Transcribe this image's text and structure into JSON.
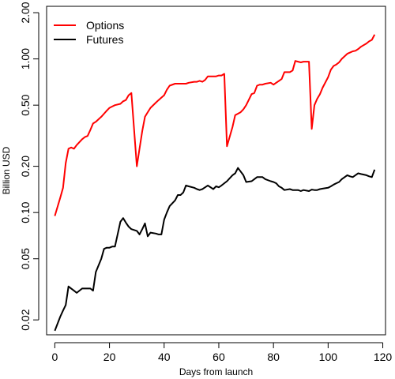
{
  "chart_data": {
    "type": "line",
    "title": "",
    "xlabel": "Days from launch",
    "ylabel": "Billion USD",
    "y_scale": "log",
    "xlim": [
      -3,
      121
    ],
    "ylim": [
      0.016,
      2.2
    ],
    "x_ticks": [
      0,
      20,
      40,
      60,
      80,
      100,
      120
    ],
    "y_ticks": [
      {
        "value": 0.02,
        "label": "0.02"
      },
      {
        "value": 0.05,
        "label": "0.05"
      },
      {
        "value": 0.1,
        "label": "0.10"
      },
      {
        "value": 0.2,
        "label": "0.20"
      },
      {
        "value": 0.5,
        "label": "0.50"
      },
      {
        "value": 1.0,
        "label": "1.00"
      },
      {
        "value": 2.0,
        "label": "2.00"
      }
    ],
    "grid": false,
    "legend_position": "top-left",
    "series": [
      {
        "name": "Options",
        "color": "#ff0000",
        "x": [
          0,
          2,
          3,
          4,
          5,
          6,
          7,
          8,
          10,
          11,
          12,
          13,
          14,
          15,
          17,
          18,
          19,
          20,
          21,
          22,
          24,
          25,
          26,
          27,
          28,
          30,
          31,
          32,
          33,
          34,
          35,
          37,
          38,
          39,
          40,
          41,
          42,
          44,
          45,
          46,
          47,
          48,
          49,
          51,
          52,
          53,
          54,
          55,
          56,
          58,
          59,
          60,
          61,
          62,
          63,
          65,
          66,
          67,
          68,
          69,
          70,
          72,
          73,
          74,
          75,
          76,
          77,
          79,
          80,
          81,
          82,
          83,
          84,
          86,
          87,
          88,
          89,
          90,
          91,
          93,
          94,
          95,
          96,
          97,
          98,
          100,
          101,
          102,
          103,
          104,
          105,
          107,
          108,
          109,
          110,
          111,
          112,
          114,
          115,
          116,
          117
        ],
        "y": [
          0.095,
          0.125,
          0.145,
          0.21,
          0.26,
          0.265,
          0.26,
          0.275,
          0.3,
          0.31,
          0.315,
          0.345,
          0.38,
          0.39,
          0.42,
          0.44,
          0.46,
          0.48,
          0.49,
          0.5,
          0.51,
          0.53,
          0.54,
          0.58,
          0.6,
          0.2,
          0.26,
          0.34,
          0.42,
          0.45,
          0.48,
          0.52,
          0.54,
          0.56,
          0.58,
          0.63,
          0.67,
          0.69,
          0.69,
          0.69,
          0.69,
          0.69,
          0.7,
          0.71,
          0.71,
          0.72,
          0.71,
          0.73,
          0.77,
          0.77,
          0.77,
          0.78,
          0.78,
          0.8,
          0.27,
          0.36,
          0.43,
          0.44,
          0.45,
          0.47,
          0.5,
          0.59,
          0.6,
          0.67,
          0.68,
          0.68,
          0.69,
          0.7,
          0.68,
          0.7,
          0.72,
          0.74,
          0.82,
          0.82,
          0.84,
          0.97,
          0.96,
          0.95,
          0.96,
          0.96,
          0.35,
          0.5,
          0.55,
          0.59,
          0.65,
          0.76,
          0.85,
          0.9,
          0.92,
          0.95,
          1.0,
          1.08,
          1.1,
          1.12,
          1.13,
          1.16,
          1.2,
          1.26,
          1.3,
          1.33,
          1.44
        ],
        "note": ""
      },
      {
        "name": "Futures",
        "color": "#000000",
        "x": [
          0,
          2,
          3,
          4,
          5,
          6,
          7,
          8,
          10,
          11,
          12,
          13,
          14,
          15,
          17,
          18,
          19,
          20,
          21,
          22,
          24,
          25,
          26,
          27,
          28,
          30,
          31,
          32,
          33,
          34,
          35,
          37,
          38,
          39,
          40,
          41,
          42,
          44,
          45,
          46,
          47,
          48,
          49,
          51,
          52,
          53,
          54,
          55,
          56,
          58,
          59,
          60,
          61,
          62,
          63,
          65,
          66,
          67,
          68,
          69,
          70,
          72,
          73,
          74,
          75,
          76,
          77,
          79,
          80,
          81,
          82,
          83,
          84,
          86,
          87,
          88,
          89,
          90,
          91,
          93,
          94,
          95,
          96,
          97,
          98,
          100,
          101,
          102,
          103,
          104,
          105,
          107,
          108,
          109,
          110,
          111,
          112,
          114,
          115,
          116,
          117
        ],
        "y": [
          0.017,
          0.021,
          0.023,
          0.025,
          0.033,
          0.032,
          0.031,
          0.03,
          0.032,
          0.032,
          0.032,
          0.032,
          0.031,
          0.041,
          0.05,
          0.058,
          0.059,
          0.059,
          0.06,
          0.06,
          0.087,
          0.092,
          0.086,
          0.081,
          0.078,
          0.076,
          0.072,
          0.078,
          0.085,
          0.07,
          0.074,
          0.073,
          0.072,
          0.072,
          0.09,
          0.1,
          0.11,
          0.12,
          0.13,
          0.13,
          0.135,
          0.15,
          0.148,
          0.145,
          0.142,
          0.14,
          0.142,
          0.146,
          0.15,
          0.142,
          0.148,
          0.146,
          0.15,
          0.155,
          0.16,
          0.175,
          0.18,
          0.195,
          0.185,
          0.175,
          0.158,
          0.16,
          0.165,
          0.17,
          0.17,
          0.17,
          0.165,
          0.16,
          0.158,
          0.155,
          0.148,
          0.145,
          0.14,
          0.142,
          0.14,
          0.14,
          0.14,
          0.138,
          0.14,
          0.138,
          0.141,
          0.14,
          0.14,
          0.142,
          0.143,
          0.145,
          0.148,
          0.152,
          0.155,
          0.158,
          0.165,
          0.175,
          0.172,
          0.17,
          0.175,
          0.18,
          0.178,
          0.175,
          0.172,
          0.17,
          0.19
        ]
      }
    ]
  }
}
